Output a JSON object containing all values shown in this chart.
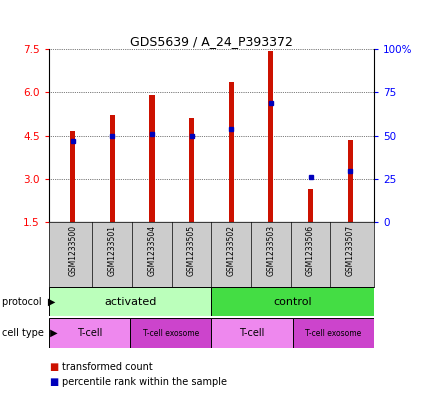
{
  "title": "GDS5639 / A_24_P393372",
  "samples": [
    "GSM1233500",
    "GSM1233501",
    "GSM1233504",
    "GSM1233505",
    "GSM1233502",
    "GSM1233503",
    "GSM1233506",
    "GSM1233507"
  ],
  "transformed_counts": [
    4.65,
    5.22,
    5.9,
    5.1,
    6.35,
    7.45,
    2.65,
    4.35
  ],
  "percentile_ranks": [
    4.32,
    4.5,
    4.55,
    4.5,
    4.72,
    5.62,
    3.05,
    3.28
  ],
  "ymin": 1.5,
  "ymax": 7.5,
  "yticks_left": [
    1.5,
    3.0,
    4.5,
    6.0,
    7.5
  ],
  "yticks_right_vals": [
    0,
    25,
    50,
    75,
    100
  ],
  "bar_color": "#cc1100",
  "percentile_color": "#0000bb",
  "bar_width": 0.13,
  "color_activated": "#bbffbb",
  "color_control": "#44dd44",
  "color_tcell": "#ee88ee",
  "color_exosome": "#cc44cc",
  "legend_red_label": "transformed count",
  "legend_blue_label": "percentile rank within the sample",
  "sample_bg": "#cccccc"
}
